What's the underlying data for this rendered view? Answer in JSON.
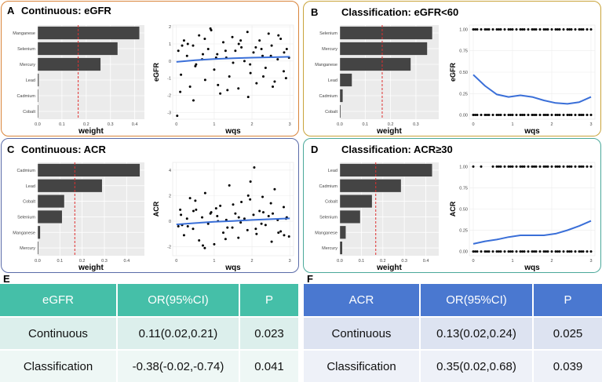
{
  "colors": {
    "panel_a": "#d9843a",
    "panel_b": "#c9a33a",
    "panel_c": "#5a6ba8",
    "panel_d": "#4aa89a",
    "bar": "#444444",
    "cutoff": "#e03030",
    "curve": "#3a6fd8",
    "table_e_header": "#45bfa8",
    "table_e_row1": "#dcefec",
    "table_e_row2": "#eef7f5",
    "table_f_header": "#4a78d0",
    "table_f_row1": "#dde3f1",
    "table_f_row2": "#eef1f8"
  },
  "chart_data": [
    {
      "id": "A",
      "label": "A",
      "title": "Continuous: eGFR",
      "weights": {
        "type": "bar",
        "orientation": "horizontal",
        "categories": [
          "Manganese",
          "Selenium",
          "Mercury",
          "Lead",
          "Cadmium",
          "Cobalt"
        ],
        "values": [
          0.42,
          0.33,
          0.26,
          0.005,
          0.003,
          0.002
        ],
        "xlabel": "weight",
        "xlim": [
          0,
          0.44
        ],
        "xticks": [
          "0.0",
          "0.1",
          "0.2",
          "0.3",
          "0.4"
        ],
        "tick_values": [
          0,
          0.1,
          0.2,
          0.3,
          0.4
        ],
        "cutoff": 0.167
      },
      "scatter": {
        "type": "scatter",
        "xlabel": "wqs",
        "ylabel": "eGFR",
        "xlim": [
          -0.1,
          3.1
        ],
        "ylim": [
          -3.4,
          2.1
        ],
        "xticks": [
          "0",
          "1",
          "2",
          "3"
        ],
        "xtick_values": [
          0,
          1,
          2,
          3
        ],
        "yticks": [
          "-3",
          "-2",
          "-1",
          "0",
          "1",
          "2"
        ],
        "ytick_values": [
          -3,
          -2,
          -1,
          0,
          1,
          2
        ],
        "x": [
          0.05,
          0.12,
          0.2,
          0.28,
          0.36,
          0.44,
          0.52,
          0.6,
          0.68,
          0.76,
          0.84,
          0.92,
          1.0,
          1.08,
          1.16,
          1.24,
          1.32,
          1.4,
          1.48,
          1.56,
          1.64,
          1.72,
          1.8,
          1.88,
          1.96,
          2.04,
          2.12,
          2.2,
          2.28,
          2.36,
          2.44,
          2.52,
          2.6,
          2.68,
          2.76,
          2.84,
          2.92,
          2.98,
          0.1,
          0.3,
          0.5,
          0.7,
          0.9,
          1.1,
          1.3,
          1.5,
          1.7,
          1.9,
          2.1,
          2.3,
          2.5,
          2.7,
          2.9,
          0.15,
          0.45,
          0.75,
          1.05,
          1.35,
          1.65,
          1.95,
          2.25,
          2.55,
          2.85,
          0.02
        ],
        "y": [
          0.6,
          -0.8,
          1.2,
          0.3,
          -1.5,
          0.9,
          -0.2,
          1.5,
          0.1,
          -1.1,
          0.7,
          1.8,
          -0.5,
          0.4,
          -1.9,
          1.1,
          0.2,
          -0.9,
          1.4,
          0.6,
          -1.6,
          0.8,
          0.0,
          1.7,
          -0.7,
          0.5,
          -1.3,
          1.2,
          0.3,
          -0.4,
          1.6,
          0.9,
          -1.2,
          0.1,
          1.3,
          -0.6,
          0.7,
          0.2,
          -1.8,
          1.0,
          -0.3,
          0.4,
          1.9,
          -1.4,
          0.6,
          -0.1,
          1.2,
          -2.1,
          0.8,
          -0.9,
          0.3,
          1.5,
          -1.0,
          0.9,
          -2.3,
          1.3,
          0.2,
          -1.7,
          1.0,
          -0.2,
          0.7,
          -1.5,
          0.5,
          -3.2
        ],
        "trend_x": [
          0,
          0.5,
          1,
          1.5,
          2,
          2.5,
          3
        ],
        "trend_y": [
          -0.05,
          0.05,
          0.12,
          0.16,
          0.2,
          0.22,
          0.25
        ]
      }
    },
    {
      "id": "B",
      "label": "B",
      "title": "Classification: eGFR<60",
      "weights": {
        "type": "bar",
        "orientation": "horizontal",
        "categories": [
          "Selenium",
          "Mercury",
          "Manganese",
          "Lead",
          "Cadmium",
          "Cobalt"
        ],
        "values": [
          0.365,
          0.345,
          0.28,
          0.048,
          0.012,
          0.004
        ],
        "xlabel": "weight",
        "xlim": [
          0,
          0.39
        ],
        "xticks": [
          "0.0",
          "0.1",
          "0.2",
          "0.3"
        ],
        "tick_values": [
          0,
          0.1,
          0.2,
          0.3
        ],
        "cutoff": 0.167
      },
      "scatter": {
        "type": "scatter",
        "xlabel": "wqs",
        "ylabel": "eGFR",
        "xlim": [
          -0.1,
          3.1
        ],
        "ylim": [
          -0.05,
          1.05
        ],
        "xticks": [
          "0",
          "1",
          "2",
          "3"
        ],
        "xtick_values": [
          0,
          1,
          2,
          3
        ],
        "yticks": [
          "0.00",
          "0.25",
          "0.50",
          "0.75",
          "1.00"
        ],
        "ytick_values": [
          0,
          0.25,
          0.5,
          0.75,
          1
        ],
        "x": [
          0.0,
          0.1,
          0.2,
          0.3,
          0.4,
          0.5,
          0.6,
          0.7,
          0.8,
          0.9,
          1.0,
          1.1,
          1.2,
          1.3,
          1.4,
          1.5,
          1.6,
          1.7,
          1.8,
          1.9,
          2.0,
          2.1,
          2.2,
          2.3,
          2.4,
          2.5,
          2.6,
          2.7,
          2.8,
          2.9,
          3.0,
          0.05,
          0.35,
          0.65,
          0.95,
          1.25,
          1.55,
          1.85,
          2.15,
          2.45,
          2.75,
          0.0,
          0.1,
          0.2,
          0.3,
          0.4,
          0.5,
          0.6,
          0.7,
          0.8,
          0.9,
          1.0,
          1.1,
          1.2,
          1.3,
          1.4,
          1.5,
          1.6,
          1.7,
          1.8,
          1.9,
          2.0,
          2.1,
          2.2,
          2.3,
          2.4,
          2.5,
          2.6,
          2.7,
          2.8,
          2.9,
          3.0,
          0.05,
          0.35,
          0.65,
          0.95,
          1.25,
          1.55,
          1.85,
          2.15,
          2.45,
          2.75
        ],
        "y": [
          1,
          1,
          1,
          1,
          1,
          1,
          1,
          1,
          1,
          1,
          1,
          1,
          1,
          1,
          1,
          1,
          1,
          1,
          1,
          1,
          1,
          1,
          1,
          1,
          1,
          1,
          1,
          1,
          1,
          1,
          1,
          1,
          1,
          1,
          1,
          1,
          1,
          1,
          1,
          1,
          1,
          0,
          0,
          0,
          0,
          0,
          0,
          0,
          0,
          0,
          0,
          0,
          0,
          0,
          0,
          0,
          0,
          0,
          0,
          0,
          0,
          0,
          0,
          0,
          0,
          0,
          0,
          0,
          0,
          0,
          0,
          0,
          0,
          0,
          0,
          0,
          0,
          0,
          0,
          0,
          0,
          0
        ],
        "trend_x": [
          0,
          0.3,
          0.6,
          0.9,
          1.2,
          1.5,
          1.8,
          2.1,
          2.4,
          2.7,
          3.0
        ],
        "trend_y": [
          0.47,
          0.34,
          0.24,
          0.21,
          0.23,
          0.21,
          0.17,
          0.14,
          0.13,
          0.15,
          0.21
        ]
      }
    },
    {
      "id": "C",
      "label": "C",
      "title": "Continuous: ACR",
      "weights": {
        "type": "bar",
        "orientation": "horizontal",
        "categories": [
          "Cadmium",
          "Lead",
          "Cobalt",
          "Selenium",
          "Manganese",
          "Mercury"
        ],
        "values": [
          0.46,
          0.29,
          0.12,
          0.11,
          0.012,
          0.004
        ],
        "xlabel": "weight",
        "xlim": [
          0,
          0.48
        ],
        "xticks": [
          "0.0",
          "0.1",
          "0.2",
          "0.3",
          "0.4"
        ],
        "tick_values": [
          0,
          0.1,
          0.2,
          0.3,
          0.4
        ],
        "cutoff": 0.167
      },
      "scatter": {
        "type": "scatter",
        "xlabel": "wqs",
        "ylabel": "ACR",
        "xlim": [
          -0.1,
          3.1
        ],
        "ylim": [
          -2.7,
          4.6
        ],
        "xticks": [
          "0",
          "1",
          "2",
          "3"
        ],
        "xtick_values": [
          0,
          1,
          2,
          3
        ],
        "yticks": [
          "-2",
          "0",
          "2",
          "4"
        ],
        "ytick_values": [
          -2,
          0,
          2,
          4
        ],
        "x": [
          0.05,
          0.12,
          0.2,
          0.28,
          0.36,
          0.44,
          0.52,
          0.6,
          0.68,
          0.76,
          0.84,
          0.92,
          1.0,
          1.08,
          1.16,
          1.24,
          1.32,
          1.4,
          1.48,
          1.56,
          1.64,
          1.72,
          1.8,
          1.88,
          1.96,
          2.04,
          2.12,
          2.2,
          2.28,
          2.36,
          2.44,
          2.52,
          2.6,
          2.68,
          2.76,
          2.84,
          2.92,
          2.98,
          0.1,
          0.3,
          0.5,
          0.7,
          0.9,
          1.1,
          1.3,
          1.5,
          1.7,
          1.9,
          2.1,
          2.3,
          2.5,
          2.7,
          2.9,
          0.15,
          0.45,
          0.75,
          1.05,
          1.35,
          1.65,
          1.95,
          2.25,
          2.55,
          2.85,
          2.06
        ],
        "y": [
          -0.4,
          0.5,
          -1.1,
          0.2,
          1.8,
          -0.6,
          0.9,
          -1.5,
          0.3,
          2.2,
          -0.2,
          0.7,
          -1.8,
          0.4,
          1.2,
          -0.9,
          0.1,
          2.8,
          -0.5,
          0.6,
          -1.3,
          1.5,
          0.2,
          -0.7,
          3.1,
          0.5,
          -1.0,
          0.8,
          1.9,
          -0.3,
          0.4,
          -1.6,
          2.5,
          0.1,
          -0.8,
          1.1,
          0.3,
          -1.2,
          0.9,
          -0.4,
          1.6,
          -1.9,
          0.6,
          0.0,
          -1.4,
          1.3,
          -0.1,
          2.0,
          -0.6,
          0.7,
          1.4,
          -0.9,
          0.2,
          -0.3,
          0.8,
          -2.1,
          1.0,
          -0.5,
          0.3,
          1.7,
          -0.2,
          0.6,
          -1.1,
          4.2
        ],
        "trend_x": [
          0,
          0.5,
          1,
          1.5,
          2,
          2.5,
          3
        ],
        "trend_y": [
          -0.25,
          -0.15,
          -0.05,
          0.02,
          0.1,
          0.16,
          0.22
        ]
      }
    },
    {
      "id": "D",
      "label": "D",
      "title": "Classification: ACR≥30",
      "weights": {
        "type": "bar",
        "orientation": "horizontal",
        "categories": [
          "Lead",
          "Cadmium",
          "Cobalt",
          "Selenium",
          "Manganese",
          "Mercury"
        ],
        "values": [
          0.43,
          0.285,
          0.15,
          0.095,
          0.028,
          0.012
        ],
        "xlabel": "weight",
        "xlim": [
          0,
          0.46
        ],
        "xticks": [
          "0.0",
          "0.1",
          "0.2",
          "0.3",
          "0.4"
        ],
        "tick_values": [
          0,
          0.1,
          0.2,
          0.3,
          0.4
        ],
        "cutoff": 0.167
      },
      "scatter": {
        "type": "scatter",
        "xlabel": "wqs",
        "ylabel": "ACR",
        "xlim": [
          -0.1,
          3.1
        ],
        "ylim": [
          -0.05,
          1.05
        ],
        "xticks": [
          "0",
          "1",
          "2",
          "3"
        ],
        "xtick_values": [
          0,
          1,
          2,
          3
        ],
        "yticks": [
          "0.00",
          "0.25",
          "0.50",
          "0.75",
          "1.00"
        ],
        "ytick_values": [
          0,
          0.25,
          0.5,
          0.75,
          1
        ],
        "x": [
          0.0,
          0.2,
          0.5,
          0.6,
          0.7,
          0.8,
          0.9,
          1.0,
          1.1,
          1.2,
          1.3,
          1.4,
          1.5,
          1.6,
          1.7,
          1.8,
          1.9,
          2.0,
          2.1,
          2.2,
          2.3,
          2.4,
          2.5,
          2.6,
          2.7,
          2.8,
          2.9,
          3.0,
          0.65,
          0.95,
          1.25,
          1.55,
          1.85,
          2.15,
          2.45,
          2.75,
          0.0,
          0.1,
          0.2,
          0.3,
          0.4,
          0.5,
          0.6,
          0.7,
          0.8,
          0.9,
          1.0,
          1.1,
          1.2,
          1.3,
          1.4,
          1.5,
          1.6,
          1.7,
          1.8,
          1.9,
          2.0,
          2.1,
          2.2,
          2.3,
          2.4,
          2.5,
          2.6,
          2.7,
          2.8,
          2.9,
          3.0,
          0.05,
          0.35,
          0.65,
          0.95,
          1.25,
          1.55,
          1.85,
          2.15,
          2.45,
          2.75
        ],
        "y": [
          1,
          1,
          1,
          1,
          1,
          1,
          1,
          1,
          1,
          1,
          1,
          1,
          1,
          1,
          1,
          1,
          1,
          1,
          1,
          1,
          1,
          1,
          1,
          1,
          1,
          1,
          1,
          1,
          1,
          1,
          1,
          1,
          1,
          1,
          1,
          1,
          0,
          0,
          0,
          0,
          0,
          0,
          0,
          0,
          0,
          0,
          0,
          0,
          0,
          0,
          0,
          0,
          0,
          0,
          0,
          0,
          0,
          0,
          0,
          0,
          0,
          0,
          0,
          0,
          0,
          0,
          0,
          0,
          0,
          0,
          0,
          0,
          0,
          0,
          0,
          0,
          0
        ],
        "trend_x": [
          0,
          0.3,
          0.6,
          0.9,
          1.2,
          1.5,
          1.8,
          2.1,
          2.4,
          2.7,
          3.0
        ],
        "trend_y": [
          0.09,
          0.12,
          0.14,
          0.17,
          0.19,
          0.19,
          0.19,
          0.21,
          0.25,
          0.3,
          0.36
        ]
      }
    },
    {
      "id": "E",
      "type": "table",
      "label": "E",
      "columns": [
        "eGFR",
        "OR(95%CI)",
        "P"
      ],
      "rows": [
        [
          "Continuous",
          "0.11(0.02,0.21)",
          "0.023"
        ],
        [
          "Classification",
          "-0.38(-0.02,-0.74)",
          "0.041"
        ]
      ]
    },
    {
      "id": "F",
      "type": "table",
      "label": "F",
      "columns": [
        "ACR",
        "OR(95%CI)",
        "P"
      ],
      "rows": [
        [
          "Continuous",
          "0.13(0.02,0.24)",
          "0.025"
        ],
        [
          "Classification",
          "0.35(0.02,0.68)",
          "0.039"
        ]
      ]
    }
  ]
}
